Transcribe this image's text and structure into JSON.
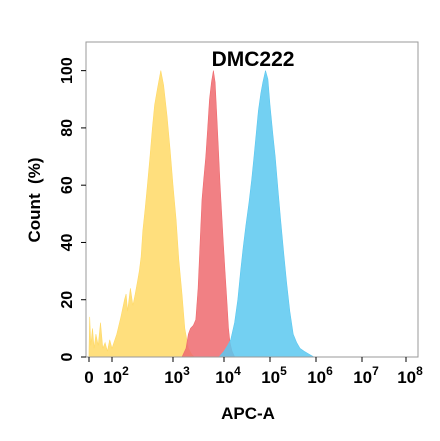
{
  "chart_data": {
    "type": "area",
    "title": "DMC222",
    "xlabel": "APC-A",
    "ylabel": "Count  (%)",
    "x_scale": "biexponential",
    "xlim": [
      0,
      100000000
    ],
    "ylim": [
      0,
      110
    ],
    "x_ticks": [
      {
        "value": 0,
        "base": "0",
        "exp": ""
      },
      {
        "value": 100,
        "base": "10",
        "exp": "2"
      },
      {
        "value": 1000,
        "base": "10",
        "exp": "3"
      },
      {
        "value": 10000,
        "base": "10",
        "exp": "4"
      },
      {
        "value": 100000,
        "base": "10",
        "exp": "5"
      },
      {
        "value": 1000000,
        "base": "10",
        "exp": "6"
      },
      {
        "value": 10000000,
        "base": "10",
        "exp": "7"
      },
      {
        "value": 100000000,
        "base": "10",
        "exp": "8"
      }
    ],
    "y_ticks": [
      0,
      20,
      40,
      60,
      80,
      100
    ],
    "grid": false,
    "legend": "none",
    "series": [
      {
        "color": "#FFD966",
        "fill_opacity": 0.85,
        "points": [
          [
            0,
            2
          ],
          [
            3,
            14
          ],
          [
            8,
            4
          ],
          [
            15,
            10
          ],
          [
            22,
            3
          ],
          [
            30,
            8
          ],
          [
            40,
            4
          ],
          [
            50,
            12
          ],
          [
            60,
            3
          ],
          [
            70,
            5
          ],
          [
            80,
            2
          ],
          [
            90,
            6
          ],
          [
            100,
            3
          ],
          [
            120,
            8
          ],
          [
            140,
            14
          ],
          [
            160,
            20
          ],
          [
            170,
            22
          ],
          [
            180,
            16
          ],
          [
            200,
            24
          ],
          [
            220,
            18
          ],
          [
            240,
            22
          ],
          [
            260,
            26
          ],
          [
            280,
            30
          ],
          [
            300,
            35
          ],
          [
            320,
            44
          ],
          [
            350,
            52
          ],
          [
            380,
            60
          ],
          [
            420,
            70
          ],
          [
            460,
            80
          ],
          [
            500,
            88
          ],
          [
            560,
            94
          ],
          [
            630,
            100
          ],
          [
            700,
            95
          ],
          [
            800,
            84
          ],
          [
            900,
            72
          ],
          [
            1000,
            60
          ],
          [
            1150,
            48
          ],
          [
            1300,
            34
          ],
          [
            1500,
            22
          ],
          [
            1700,
            10
          ],
          [
            2000,
            3
          ],
          [
            2300,
            1
          ],
          [
            2600,
            0
          ]
        ]
      },
      {
        "color": "#EF6A6E",
        "fill_opacity": 0.85,
        "points": [
          [
            1500,
            0
          ],
          [
            1800,
            3
          ],
          [
            2000,
            8
          ],
          [
            2200,
            10
          ],
          [
            2500,
            11
          ],
          [
            2800,
            13
          ],
          [
            3100,
            24
          ],
          [
            3400,
            40
          ],
          [
            3700,
            55
          ],
          [
            4000,
            62
          ],
          [
            4400,
            70
          ],
          [
            4800,
            80
          ],
          [
            5200,
            90
          ],
          [
            5700,
            96
          ],
          [
            6200,
            100
          ],
          [
            6700,
            96
          ],
          [
            7200,
            85
          ],
          [
            7800,
            72
          ],
          [
            8400,
            60
          ],
          [
            9000,
            50
          ],
          [
            9700,
            40
          ],
          [
            10500,
            30
          ],
          [
            11500,
            20
          ],
          [
            12500,
            10
          ],
          [
            13500,
            5
          ],
          [
            15000,
            2
          ],
          [
            17000,
            0
          ]
        ]
      },
      {
        "color": "#5BC8F0",
        "fill_opacity": 0.85,
        "points": [
          [
            8000,
            0
          ],
          [
            10000,
            2
          ],
          [
            12000,
            4
          ],
          [
            14000,
            6
          ],
          [
            17000,
            12
          ],
          [
            20000,
            20
          ],
          [
            23000,
            30
          ],
          [
            26000,
            38
          ],
          [
            30000,
            46
          ],
          [
            35000,
            54
          ],
          [
            40000,
            62
          ],
          [
            45000,
            70
          ],
          [
            50000,
            78
          ],
          [
            56000,
            86
          ],
          [
            63000,
            92
          ],
          [
            70000,
            96
          ],
          [
            80000,
            100
          ],
          [
            90000,
            97
          ],
          [
            100000,
            88
          ],
          [
            115000,
            78
          ],
          [
            130000,
            70
          ],
          [
            150000,
            58
          ],
          [
            170000,
            48
          ],
          [
            200000,
            36
          ],
          [
            230000,
            26
          ],
          [
            270000,
            16
          ],
          [
            320000,
            8
          ],
          [
            380000,
            5
          ],
          [
            450000,
            3
          ],
          [
            550000,
            2
          ],
          [
            700000,
            1
          ],
          [
            900000,
            0
          ]
        ]
      }
    ]
  }
}
